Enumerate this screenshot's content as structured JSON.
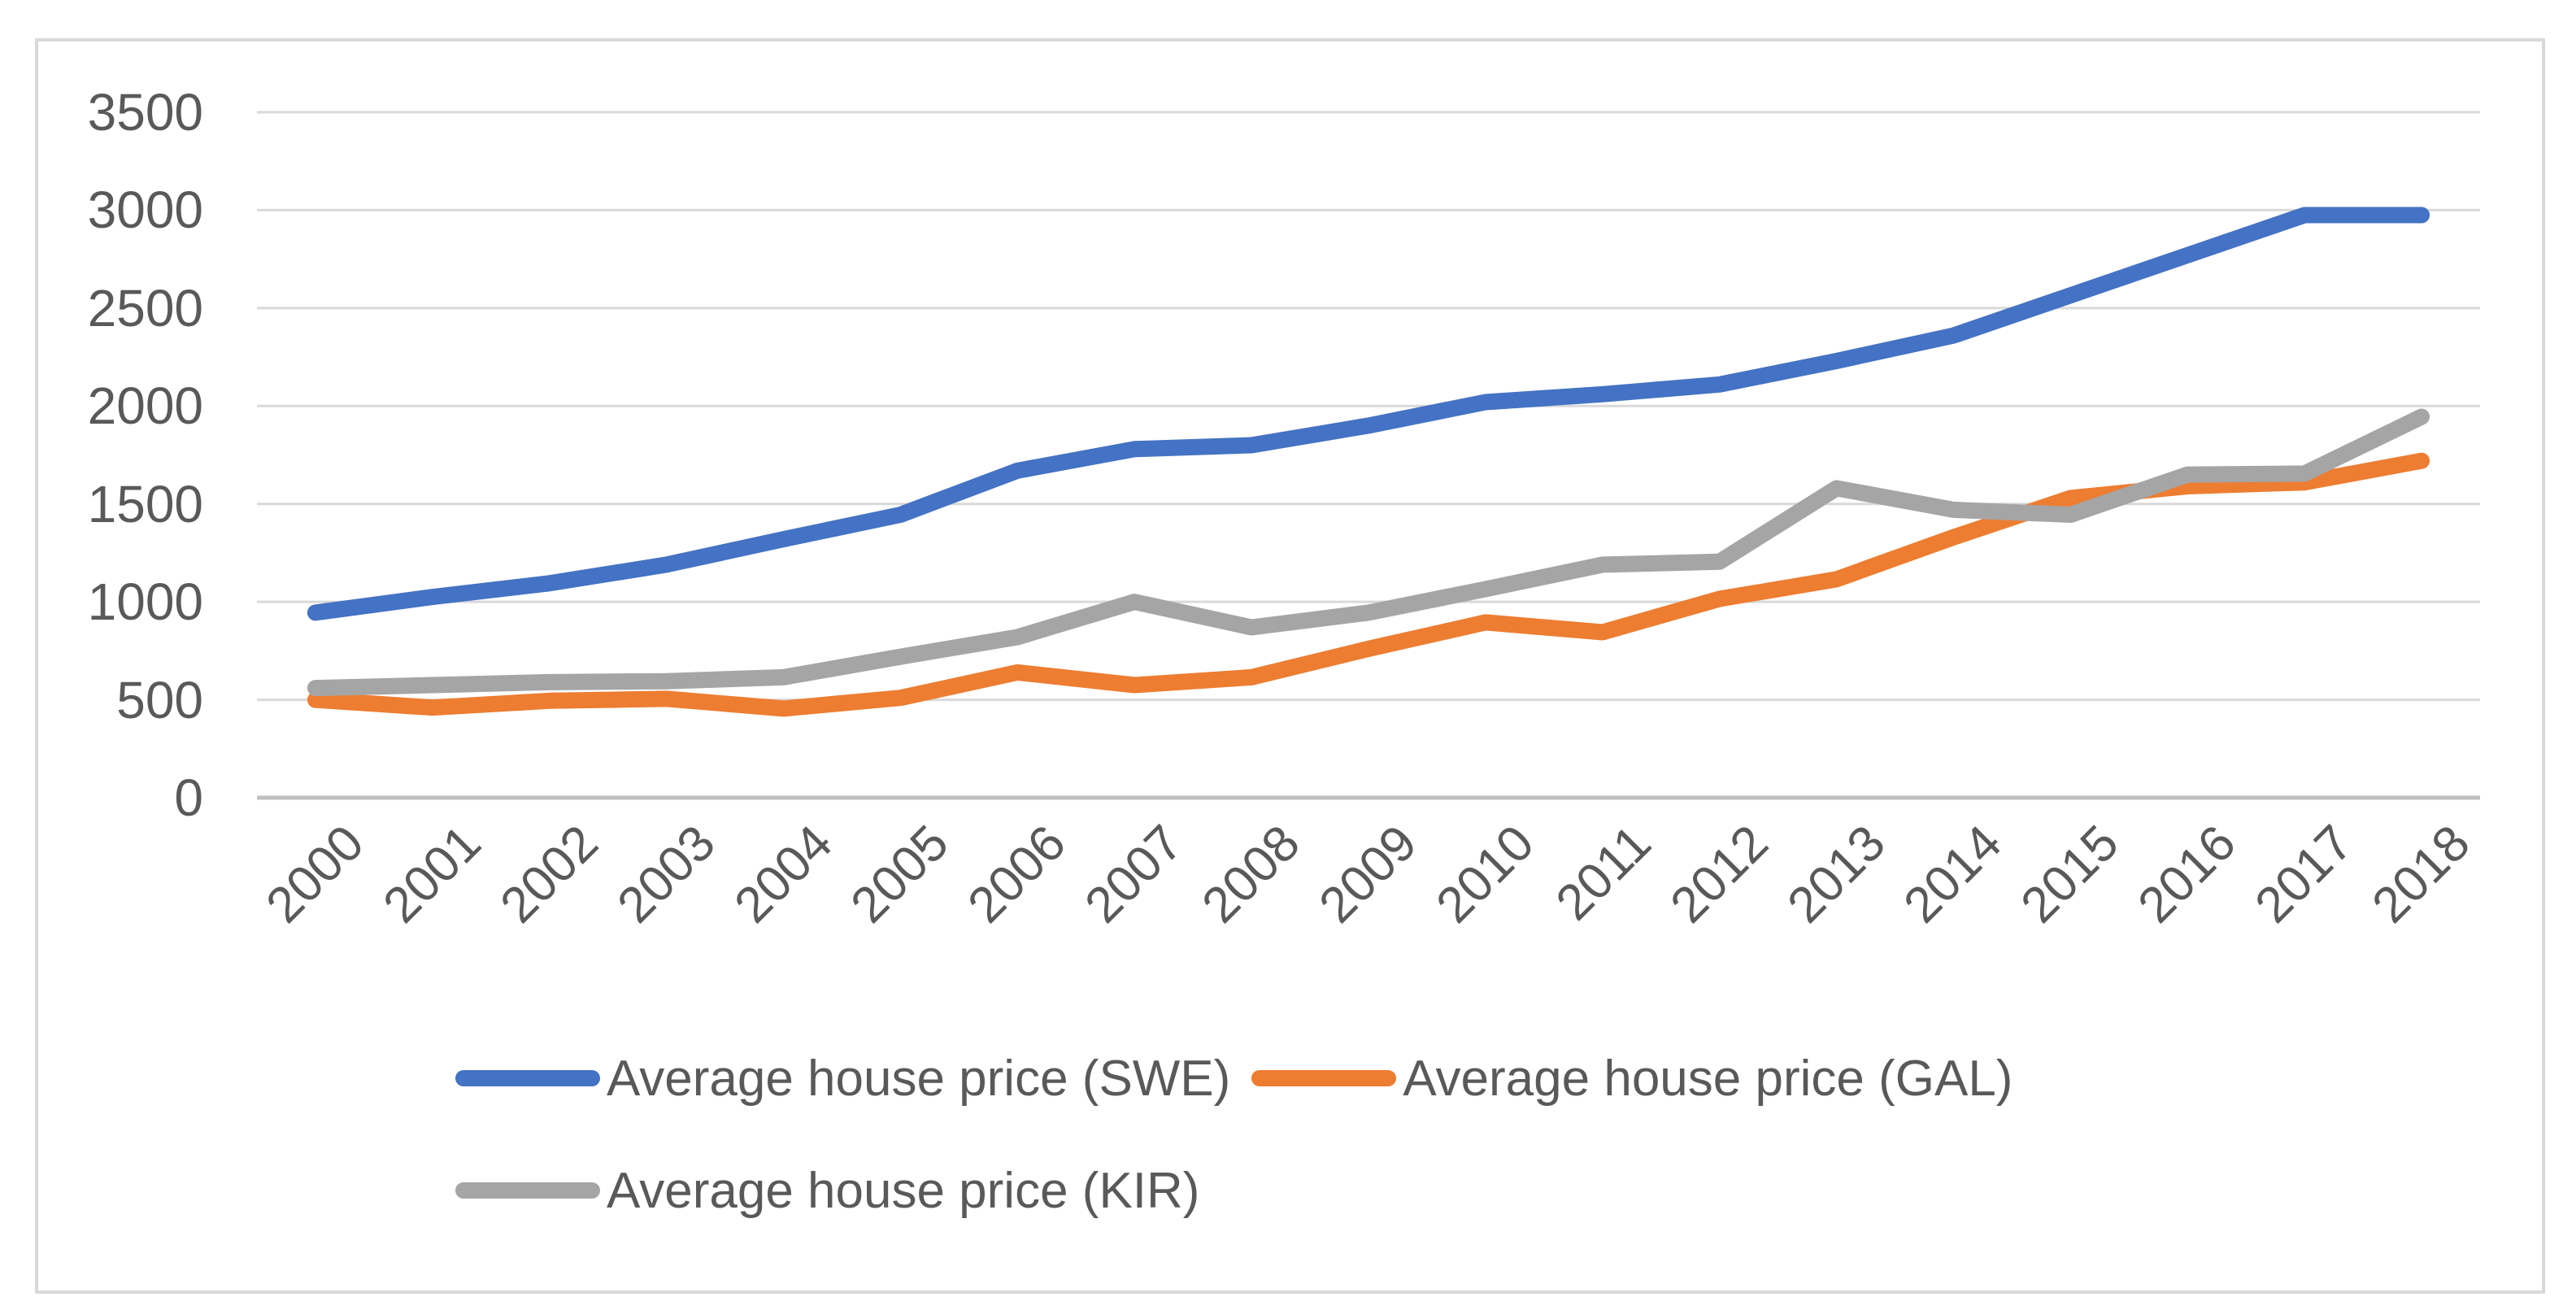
{
  "chart_data": {
    "type": "line",
    "title": "",
    "xlabel": "",
    "ylabel": "",
    "categories": [
      "2000",
      "2001",
      "2002",
      "2003",
      "2004",
      "2005",
      "2006",
      "2007",
      "2008",
      "2009",
      "2010",
      "2011",
      "2012",
      "2013",
      "2014",
      "2015",
      "2016",
      "2017",
      "2018"
    ],
    "series": [
      {
        "name": "Average house price (SWE)",
        "color": "#4472C4",
        "values": [
          945,
          1025,
          1095,
          1190,
          1320,
          1445,
          1670,
          1780,
          1800,
          1900,
          2020,
          2060,
          2110,
          2230,
          2360,
          2565,
          2770,
          2975,
          2975
        ]
      },
      {
        "name": "Average house price (GAL)",
        "color": "#ED7D31",
        "values": [
          500,
          460,
          495,
          505,
          455,
          510,
          640,
          575,
          615,
          760,
          895,
          845,
          1015,
          1115,
          1330,
          1530,
          1590,
          1610,
          1720
        ]
      },
      {
        "name": "Average house price (KIR)",
        "color": "#A5A5A5",
        "values": [
          560,
          575,
          590,
          595,
          615,
          720,
          820,
          1000,
          870,
          945,
          1065,
          1190,
          1205,
          1580,
          1470,
          1445,
          1650,
          1655,
          1945
        ]
      }
    ],
    "ylim": [
      0,
      3500
    ],
    "yticks": [
      0,
      500,
      1000,
      1500,
      2000,
      2500,
      3000,
      3500
    ],
    "grid": true,
    "legend_position": "bottom"
  },
  "colors": {
    "series_swe": "#4472C4",
    "series_gal": "#ED7D31",
    "series_kir": "#A5A5A5",
    "tick_text": "#595959",
    "gridline": "#D9D9D9",
    "axis_line": "#BFBFBF",
    "frame_border": "#D9D9D9",
    "background": "#FFFFFF"
  }
}
